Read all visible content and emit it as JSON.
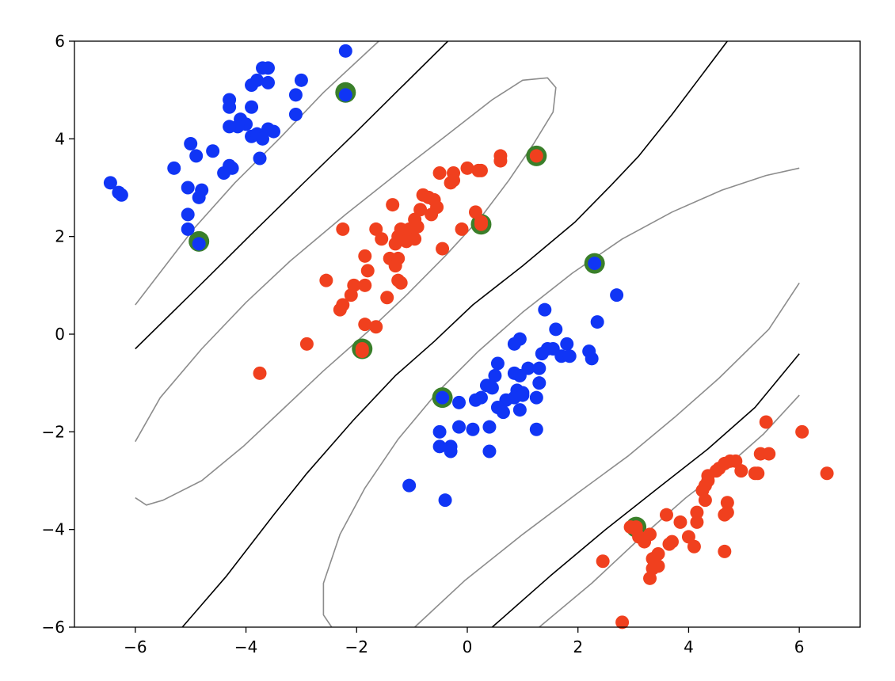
{
  "chart_data": {
    "type": "scatter",
    "title": "",
    "xlabel": "",
    "ylabel": "",
    "xlim": [
      -7.1,
      7.1
    ],
    "ylim": [
      -6,
      6
    ],
    "grid": false,
    "legend": "none",
    "xticks": [
      -6,
      -4,
      -2,
      0,
      2,
      4,
      6
    ],
    "yticks": [
      -6,
      -4,
      -2,
      0,
      2,
      4,
      6
    ],
    "xtick_labels": [
      "−6",
      "−4",
      "−2",
      "0",
      "2",
      "4",
      "6"
    ],
    "ytick_labels": [
      "−6",
      "−4",
      "−2",
      "0",
      "2",
      "4",
      "6"
    ],
    "colors": {
      "class_a": "#1035f5",
      "class_b": "#f0401e",
      "support_ring": "#3a7f2a",
      "boundary": "#000000",
      "margin": "#8c8c8c"
    },
    "series": [
      {
        "class": "blue",
        "points": [
          [
            -2.2,
            5.8
          ],
          [
            -3.6,
            5.45
          ],
          [
            -3.7,
            5.45
          ],
          [
            -3.0,
            5.2
          ],
          [
            -3.9,
            5.1
          ],
          [
            -3.8,
            5.2
          ],
          [
            -3.6,
            5.15
          ],
          [
            -3.1,
            4.9
          ],
          [
            -4.3,
            4.8
          ],
          [
            -4.3,
            4.65
          ],
          [
            -3.9,
            4.65
          ],
          [
            -3.1,
            4.5
          ],
          [
            -4.1,
            4.4
          ],
          [
            -4.0,
            4.3
          ],
          [
            -4.15,
            4.25
          ],
          [
            -4.3,
            4.25
          ],
          [
            -3.6,
            4.2
          ],
          [
            -3.5,
            4.15
          ],
          [
            -3.9,
            4.05
          ],
          [
            -3.8,
            4.1
          ],
          [
            -3.7,
            4.0
          ],
          [
            -5.0,
            3.9
          ],
          [
            -4.6,
            3.75
          ],
          [
            -4.9,
            3.65
          ],
          [
            -3.75,
            3.6
          ],
          [
            -4.3,
            3.45
          ],
          [
            -4.25,
            3.4
          ],
          [
            -5.3,
            3.4
          ],
          [
            -4.4,
            3.3
          ],
          [
            -6.45,
            3.1
          ],
          [
            -5.05,
            3.0
          ],
          [
            -4.8,
            2.95
          ],
          [
            -6.3,
            2.9
          ],
          [
            -6.25,
            2.85
          ],
          [
            -4.85,
            2.8
          ],
          [
            -5.05,
            2.45
          ],
          [
            -5.05,
            2.15
          ],
          [
            -4.85,
            1.85
          ],
          [
            1.4,
            0.5
          ],
          [
            2.7,
            0.8
          ],
          [
            1.6,
            0.1
          ],
          [
            2.35,
            0.25
          ],
          [
            0.95,
            -0.1
          ],
          [
            0.85,
            -0.2
          ],
          [
            1.8,
            -0.2
          ],
          [
            1.45,
            -0.3
          ],
          [
            1.55,
            -0.3
          ],
          [
            2.2,
            -0.35
          ],
          [
            1.35,
            -0.4
          ],
          [
            1.7,
            -0.45
          ],
          [
            1.85,
            -0.45
          ],
          [
            2.25,
            -0.5
          ],
          [
            0.55,
            -0.6
          ],
          [
            1.1,
            -0.7
          ],
          [
            1.3,
            -0.7
          ],
          [
            0.85,
            -0.8
          ],
          [
            0.5,
            -0.85
          ],
          [
            0.95,
            -0.85
          ],
          [
            1.3,
            -1.0
          ],
          [
            0.35,
            -1.05
          ],
          [
            0.45,
            -1.1
          ],
          [
            0.9,
            -1.15
          ],
          [
            1.0,
            -1.2
          ],
          [
            1.0,
            -1.25
          ],
          [
            0.85,
            -1.3
          ],
          [
            0.25,
            -1.3
          ],
          [
            0.15,
            -1.35
          ],
          [
            1.25,
            -1.3
          ],
          [
            0.7,
            -1.35
          ],
          [
            0.55,
            -1.5
          ],
          [
            0.95,
            -1.55
          ],
          [
            0.65,
            -1.6
          ],
          [
            -0.15,
            -1.4
          ],
          [
            -0.45,
            -1.3
          ],
          [
            0.4,
            -1.9
          ],
          [
            -0.15,
            -1.9
          ],
          [
            0.1,
            -1.95
          ],
          [
            1.25,
            -1.95
          ],
          [
            -0.5,
            -2.0
          ],
          [
            -0.3,
            -2.3
          ],
          [
            -0.5,
            -2.3
          ],
          [
            -0.3,
            -2.4
          ],
          [
            0.4,
            -2.4
          ],
          [
            -1.05,
            -3.1
          ],
          [
            -0.4,
            -3.4
          ],
          [
            2.3,
            1.45
          ],
          [
            -2.2,
            4.9
          ]
        ]
      },
      {
        "class": "red",
        "points": [
          [
            1.25,
            3.65
          ],
          [
            0.6,
            3.65
          ],
          [
            0.6,
            3.55
          ],
          [
            0.0,
            3.4
          ],
          [
            0.2,
            3.35
          ],
          [
            0.25,
            3.35
          ],
          [
            -0.25,
            3.3
          ],
          [
            -0.5,
            3.3
          ],
          [
            -0.25,
            3.15
          ],
          [
            -0.3,
            3.1
          ],
          [
            -0.8,
            2.85
          ],
          [
            -0.7,
            2.8
          ],
          [
            -0.6,
            2.75
          ],
          [
            -0.55,
            2.6
          ],
          [
            -1.35,
            2.65
          ],
          [
            -0.85,
            2.55
          ],
          [
            0.15,
            2.5
          ],
          [
            -0.65,
            2.45
          ],
          [
            -0.95,
            2.35
          ],
          [
            -0.9,
            2.2
          ],
          [
            -1.05,
            2.15
          ],
          [
            -1.65,
            2.15
          ],
          [
            -2.25,
            2.15
          ],
          [
            0.25,
            2.3
          ],
          [
            -0.1,
            2.15
          ],
          [
            -1.2,
            2.15
          ],
          [
            -1.1,
            2.05
          ],
          [
            -1.25,
            2.0
          ],
          [
            -1.1,
            1.9
          ],
          [
            -0.95,
            1.95
          ],
          [
            -1.55,
            1.95
          ],
          [
            -1.3,
            1.85
          ],
          [
            -0.45,
            1.75
          ],
          [
            -1.85,
            1.6
          ],
          [
            -1.4,
            1.55
          ],
          [
            -1.25,
            1.55
          ],
          [
            -1.3,
            1.4
          ],
          [
            -1.8,
            1.3
          ],
          [
            -1.25,
            1.1
          ],
          [
            -1.2,
            1.05
          ],
          [
            -2.55,
            1.1
          ],
          [
            -1.85,
            1.0
          ],
          [
            -2.05,
            1.0
          ],
          [
            -2.1,
            0.8
          ],
          [
            -2.25,
            0.6
          ],
          [
            -2.3,
            0.5
          ],
          [
            -1.45,
            0.75
          ],
          [
            -1.85,
            0.2
          ],
          [
            -1.65,
            0.15
          ],
          [
            -2.9,
            -0.2
          ],
          [
            -1.9,
            -0.35
          ],
          [
            -3.75,
            -0.8
          ],
          [
            5.4,
            -1.8
          ],
          [
            6.05,
            -2.0
          ],
          [
            5.45,
            -2.45
          ],
          [
            5.3,
            -2.45
          ],
          [
            4.75,
            -2.6
          ],
          [
            4.85,
            -2.6
          ],
          [
            4.65,
            -2.65
          ],
          [
            4.55,
            -2.75
          ],
          [
            4.95,
            -2.8
          ],
          [
            4.5,
            -2.8
          ],
          [
            4.35,
            -2.9
          ],
          [
            4.35,
            -3.0
          ],
          [
            5.2,
            -2.85
          ],
          [
            5.25,
            -2.85
          ],
          [
            4.3,
            -3.1
          ],
          [
            4.25,
            -3.2
          ],
          [
            6.5,
            -2.85
          ],
          [
            4.3,
            -3.4
          ],
          [
            4.7,
            -3.45
          ],
          [
            4.7,
            -3.65
          ],
          [
            4.15,
            -3.65
          ],
          [
            3.6,
            -3.7
          ],
          [
            4.65,
            -3.7
          ],
          [
            3.85,
            -3.85
          ],
          [
            4.15,
            -3.85
          ],
          [
            2.95,
            -3.95
          ],
          [
            3.05,
            -4.0
          ],
          [
            3.1,
            -4.15
          ],
          [
            3.3,
            -4.1
          ],
          [
            3.2,
            -4.25
          ],
          [
            4.0,
            -4.15
          ],
          [
            3.7,
            -4.25
          ],
          [
            3.65,
            -4.3
          ],
          [
            4.1,
            -4.35
          ],
          [
            4.65,
            -4.45
          ],
          [
            3.45,
            -4.5
          ],
          [
            3.35,
            -4.6
          ],
          [
            3.45,
            -4.75
          ],
          [
            3.35,
            -4.8
          ],
          [
            2.45,
            -4.65
          ],
          [
            3.3,
            -5.0
          ],
          [
            2.8,
            -5.9
          ],
          [
            3.05,
            -3.95
          ],
          [
            0.25,
            2.25
          ],
          [
            -1.9,
            -0.3
          ]
        ]
      }
    ],
    "support_vectors": [
      [
        -2.2,
        4.95
      ],
      [
        -4.85,
        1.9
      ],
      [
        1.25,
        3.65
      ],
      [
        0.25,
        2.25
      ],
      [
        2.3,
        1.45
      ],
      [
        -1.9,
        -0.3
      ],
      [
        -0.45,
        -1.3
      ],
      [
        3.05,
        -3.95
      ]
    ],
    "contours": {
      "decision_boundary": [
        [
          [
            -6.0,
            -0.3
          ],
          [
            -4.7,
            1.15
          ],
          [
            -3.9,
            2.05
          ],
          [
            -3.0,
            3.05
          ],
          [
            -2.0,
            4.15
          ],
          [
            -1.2,
            5.05
          ],
          [
            -0.35,
            6.0
          ]
        ],
        [
          [
            -5.15,
            -6.0
          ],
          [
            -4.35,
            -4.95
          ],
          [
            -3.5,
            -3.7
          ],
          [
            -2.9,
            -2.85
          ],
          [
            -2.05,
            -1.75
          ],
          [
            -1.3,
            -0.85
          ],
          [
            -0.6,
            -0.15
          ],
          [
            0.1,
            0.6
          ],
          [
            1.0,
            1.4
          ],
          [
            1.95,
            2.3
          ],
          [
            2.6,
            3.05
          ],
          [
            3.1,
            3.65
          ],
          [
            3.7,
            4.5
          ],
          [
            4.2,
            5.25
          ],
          [
            4.7,
            6.0
          ]
        ],
        [
          [
            0.45,
            -6.0
          ],
          [
            1.5,
            -4.95
          ],
          [
            2.5,
            -4.0
          ],
          [
            3.45,
            -3.15
          ],
          [
            4.35,
            -2.35
          ],
          [
            5.2,
            -1.5
          ],
          [
            6.0,
            -0.4
          ]
        ]
      ],
      "margin": [
        [
          [
            -6.0,
            0.6
          ],
          [
            -4.95,
            2.15
          ],
          [
            -4.2,
            3.1
          ],
          [
            -3.4,
            4.0
          ],
          [
            -2.6,
            4.95
          ],
          [
            -1.6,
            6.0
          ]
        ],
        [
          [
            -6.0,
            -2.2
          ],
          [
            -5.55,
            -1.3
          ],
          [
            -4.8,
            -0.3
          ],
          [
            -4.0,
            0.65
          ],
          [
            -3.2,
            1.5
          ],
          [
            -2.2,
            2.45
          ],
          [
            -1.2,
            3.35
          ],
          [
            -0.4,
            4.05
          ],
          [
            0.45,
            4.8
          ],
          [
            1.0,
            5.2
          ],
          [
            1.45,
            5.25
          ],
          [
            1.6,
            5.05
          ],
          [
            1.55,
            4.55
          ],
          [
            1.2,
            3.9
          ],
          [
            0.75,
            3.15
          ],
          [
            0.25,
            2.4
          ],
          [
            -0.4,
            1.6
          ],
          [
            -1.1,
            0.8
          ],
          [
            -1.8,
            0.05
          ],
          [
            -2.6,
            -0.75
          ],
          [
            -3.3,
            -1.5
          ],
          [
            -4.05,
            -2.3
          ],
          [
            -4.8,
            -3.0
          ],
          [
            -5.5,
            -3.4
          ],
          [
            -5.8,
            -3.5
          ],
          [
            -6.0,
            -3.35
          ]
        ],
        [
          [
            6.0,
            3.4
          ],
          [
            5.4,
            3.25
          ],
          [
            4.6,
            2.95
          ],
          [
            3.7,
            2.5
          ],
          [
            2.8,
            1.95
          ],
          [
            1.9,
            1.25
          ],
          [
            1.0,
            0.45
          ],
          [
            0.2,
            -0.35
          ],
          [
            -0.55,
            -1.2
          ],
          [
            -1.25,
            -2.15
          ],
          [
            -1.85,
            -3.15
          ],
          [
            -2.3,
            -4.1
          ],
          [
            -2.6,
            -5.1
          ],
          [
            -2.6,
            -5.75
          ],
          [
            -2.45,
            -6.0
          ]
        ],
        [
          [
            6.0,
            1.05
          ],
          [
            5.45,
            0.1
          ],
          [
            4.55,
            -0.9
          ],
          [
            3.75,
            -1.7
          ],
          [
            2.9,
            -2.5
          ],
          [
            2.0,
            -3.25
          ],
          [
            1.0,
            -4.1
          ],
          [
            -0.05,
            -5.05
          ],
          [
            -0.95,
            -6.0
          ]
        ],
        [
          [
            1.3,
            -6.0
          ],
          [
            2.25,
            -5.1
          ],
          [
            3.1,
            -4.2
          ],
          [
            3.95,
            -3.35
          ],
          [
            4.75,
            -2.65
          ],
          [
            5.35,
            -2.05
          ],
          [
            6.0,
            -1.25
          ]
        ]
      ]
    }
  }
}
